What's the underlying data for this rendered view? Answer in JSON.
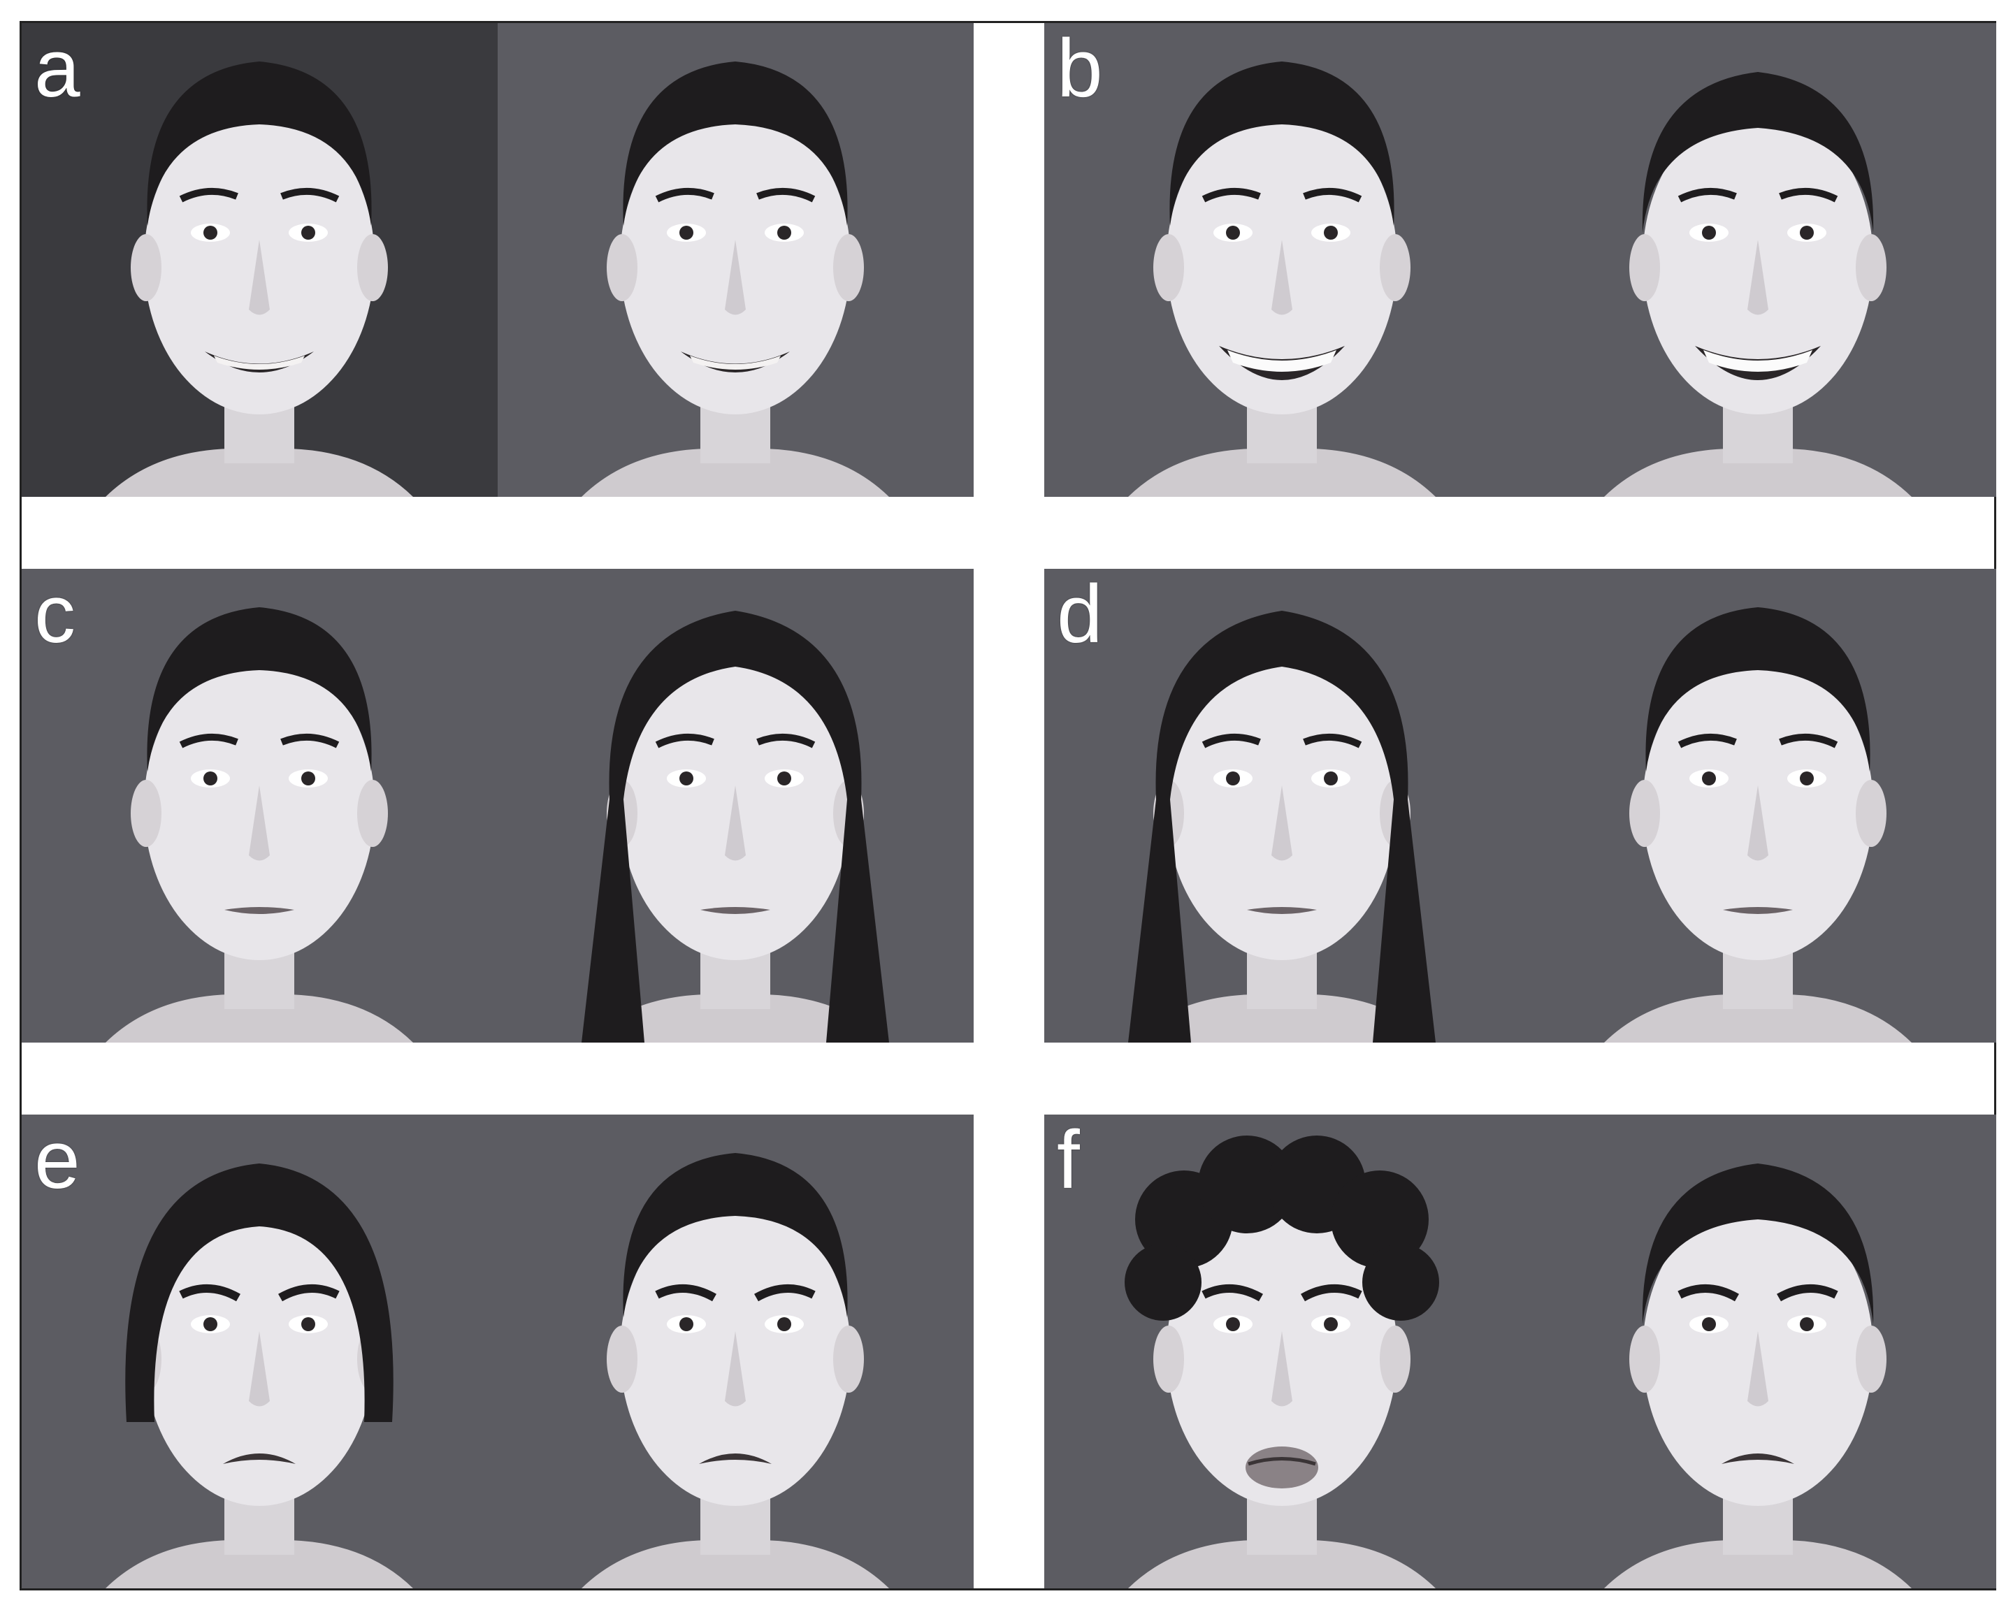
{
  "figure": {
    "panels": [
      {
        "letter": "a",
        "expression_icon": "smile-icon"
      },
      {
        "letter": "b",
        "expression_icon": "smile-icon"
      },
      {
        "letter": "c",
        "expression_icon": "neutral-icon"
      },
      {
        "letter": "d",
        "expression_icon": "neutral-icon"
      },
      {
        "letter": "e",
        "expression_icon": "frown-icon"
      },
      {
        "letter": "f",
        "expression_icon": "frown-icon"
      }
    ]
  },
  "colors": {
    "background_light": "#5c5c62",
    "background_dark": "#3a3a3e",
    "skin": "#e8e6ea",
    "hair": "#1e1c1e",
    "frame": "#222222"
  }
}
